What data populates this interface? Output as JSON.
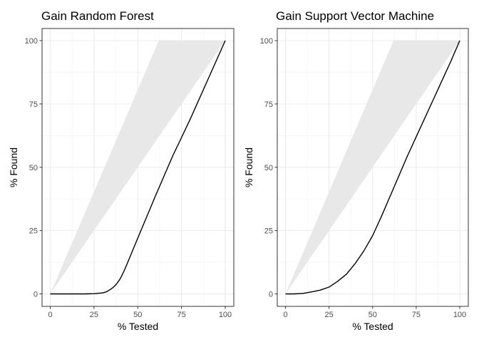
{
  "chart_data": [
    {
      "type": "line",
      "title": "Gain Random Forest",
      "xlabel": "% Tested",
      "ylabel": "% Found",
      "xlim": [
        0,
        100
      ],
      "ylim": [
        0,
        100
      ],
      "xticks": [
        "0",
        "25",
        "50",
        "75",
        "100"
      ],
      "yticks": [
        "0",
        "25",
        "50",
        "75",
        "100"
      ],
      "grid": true,
      "shaded_region": {
        "upper": [
          [
            0,
            0
          ],
          [
            62,
            100
          ],
          [
            100,
            100
          ]
        ],
        "lower": [
          [
            0,
            0
          ],
          [
            100,
            100
          ]
        ],
        "color": "#e8e8e8"
      },
      "series": [
        {
          "color": "#000000",
          "points": [
            [
              0,
              0
            ],
            [
              10,
              0
            ],
            [
              20,
              0
            ],
            [
              25,
              0.1
            ],
            [
              30,
              0.4
            ],
            [
              32,
              0.8
            ],
            [
              34,
              1.6
            ],
            [
              36,
              2.6
            ],
            [
              38,
              4.0
            ],
            [
              40,
              6.0
            ],
            [
              42,
              8.8
            ],
            [
              44,
              12.0
            ],
            [
              50,
              22.0
            ],
            [
              60,
              38.5
            ],
            [
              70,
              54.5
            ],
            [
              80,
              69.0
            ],
            [
              90,
              84.5
            ],
            [
              100,
              100
            ]
          ]
        }
      ]
    },
    {
      "type": "line",
      "title": "Gain Support Vector Machine",
      "xlabel": "% Tested",
      "ylabel": "% Found",
      "xlim": [
        0,
        100
      ],
      "ylim": [
        0,
        100
      ],
      "xticks": [
        "0",
        "25",
        "50",
        "75",
        "100"
      ],
      "yticks": [
        "0",
        "25",
        "50",
        "75",
        "100"
      ],
      "grid": true,
      "shaded_region": {
        "upper": [
          [
            0,
            0
          ],
          [
            62,
            100
          ],
          [
            100,
            100
          ]
        ],
        "lower": [
          [
            0,
            0
          ],
          [
            100,
            100
          ]
        ],
        "color": "#e8e8e8"
      },
      "series": [
        {
          "color": "#000000",
          "points": [
            [
              0,
              0
            ],
            [
              5,
              0
            ],
            [
              10,
              0.2
            ],
            [
              15,
              0.8
            ],
            [
              20,
              1.5
            ],
            [
              25,
              2.7
            ],
            [
              30,
              5.0
            ],
            [
              35,
              7.8
            ],
            [
              40,
              12.0
            ],
            [
              45,
              17.0
            ],
            [
              50,
              23.0
            ],
            [
              55,
              30.5
            ],
            [
              60,
              38.5
            ],
            [
              65,
              46.5
            ],
            [
              70,
              54.5
            ],
            [
              75,
              62.0
            ],
            [
              80,
              69.5
            ],
            [
              85,
              77.0
            ],
            [
              90,
              84.5
            ],
            [
              95,
              92.0
            ],
            [
              100,
              100
            ]
          ]
        }
      ]
    }
  ]
}
